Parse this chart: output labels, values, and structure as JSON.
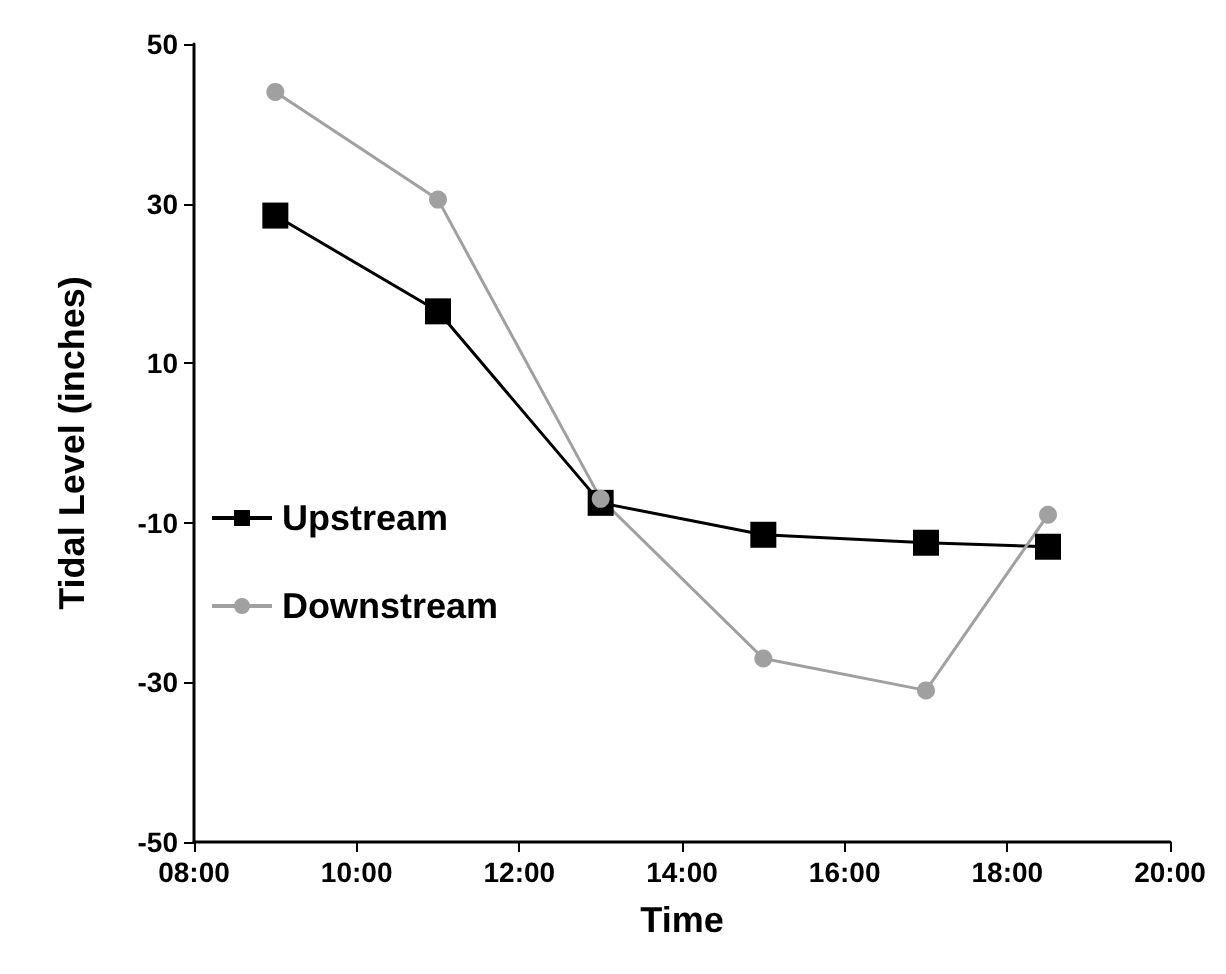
{
  "chart_data": {
    "type": "line",
    "xlabel": "Time",
    "ylabel": "Tidal Level (inches)",
    "x": [
      9,
      11,
      13,
      15,
      17,
      18.5
    ],
    "series": [
      {
        "name": "Upstream",
        "color": "#000000",
        "marker": "square",
        "values": [
          28.5,
          16.5,
          -7.5,
          -11.5,
          -12.5,
          -13
        ]
      },
      {
        "name": "Downstream",
        "color": "#a0a0a0",
        "marker": "circle",
        "values": [
          44,
          30.5,
          -7,
          -27,
          -31,
          -9
        ]
      }
    ],
    "xlim": [
      8,
      20
    ],
    "xticks": [
      {
        "value": 8,
        "label": "08:00"
      },
      {
        "value": 10,
        "label": "10:00"
      },
      {
        "value": 12,
        "label": "12:00"
      },
      {
        "value": 14,
        "label": "14:00"
      },
      {
        "value": 16,
        "label": "16:00"
      },
      {
        "value": 18,
        "label": "18:00"
      },
      {
        "value": 20,
        "label": "20:00"
      }
    ],
    "ylim": [
      -50,
      50
    ],
    "yticks": [
      -50,
      -30,
      -10,
      10,
      30,
      50
    ],
    "grid": false,
    "legend": "left",
    "line_style": "solid"
  }
}
